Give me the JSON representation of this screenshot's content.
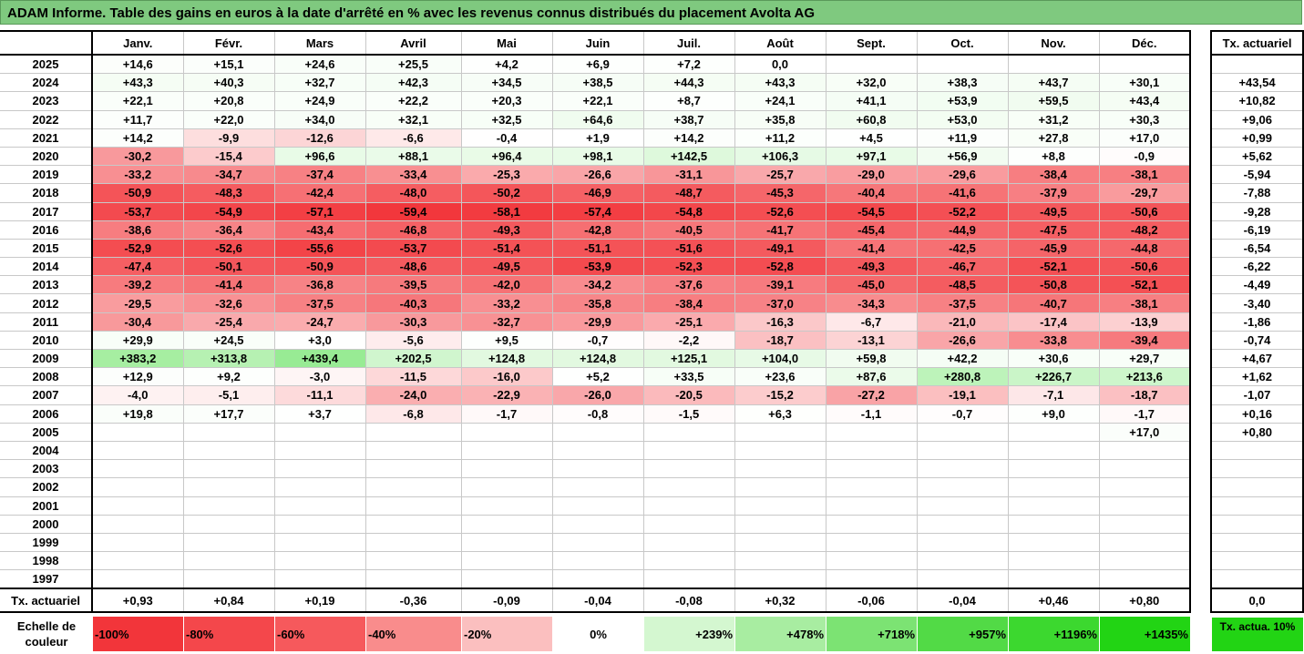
{
  "title": "ADAM Informe. Table des gains en euros à la date d'arrêté en % avec les revenus connus distribués du placement Avolta AG",
  "months": [
    "Janv.",
    "Févr.",
    "Mars",
    "Avril",
    "Mai",
    "Juin",
    "Juil.",
    "Août",
    "Sept.",
    "Oct.",
    "Nov.",
    "Déc."
  ],
  "side_header": "Tx. actuariel",
  "footer_label": "Tx. actuariel",
  "rows": [
    {
      "year": "2025",
      "values": [
        "+14,6",
        "+15,1",
        "+24,6",
        "+25,5",
        "+4,2",
        "+6,9",
        "+7,2",
        "0,0",
        "",
        "",
        "",
        ""
      ],
      "rate": ""
    },
    {
      "year": "2024",
      "values": [
        "+43,3",
        "+40,3",
        "+32,7",
        "+42,3",
        "+34,5",
        "+38,5",
        "+44,3",
        "+43,3",
        "+32,0",
        "+38,3",
        "+43,7",
        "+30,1"
      ],
      "rate": "+43,54"
    },
    {
      "year": "2023",
      "values": [
        "+22,1",
        "+20,8",
        "+24,9",
        "+22,2",
        "+20,3",
        "+22,1",
        "+8,7",
        "+24,1",
        "+41,1",
        "+53,9",
        "+59,5",
        "+43,4"
      ],
      "rate": "+10,82"
    },
    {
      "year": "2022",
      "values": [
        "+11,7",
        "+22,0",
        "+34,0",
        "+32,1",
        "+32,5",
        "+64,6",
        "+38,7",
        "+35,8",
        "+60,8",
        "+53,0",
        "+31,2",
        "+30,3"
      ],
      "rate": "+9,06"
    },
    {
      "year": "2021",
      "values": [
        "+14,2",
        "-9,9",
        "-12,6",
        "-6,6",
        "-0,4",
        "+1,9",
        "+14,2",
        "+11,2",
        "+4,5",
        "+11,9",
        "+27,8",
        "+17,0"
      ],
      "rate": "+0,99"
    },
    {
      "year": "2020",
      "values": [
        "-30,2",
        "-15,4",
        "+96,6",
        "+88,1",
        "+96,4",
        "+98,1",
        "+142,5",
        "+106,3",
        "+97,1",
        "+56,9",
        "+8,8",
        "-0,9"
      ],
      "rate": "+5,62"
    },
    {
      "year": "2019",
      "values": [
        "-33,2",
        "-34,7",
        "-37,4",
        "-33,4",
        "-25,3",
        "-26,6",
        "-31,1",
        "-25,7",
        "-29,0",
        "-29,6",
        "-38,4",
        "-38,1"
      ],
      "rate": "-5,94"
    },
    {
      "year": "2018",
      "values": [
        "-50,9",
        "-48,3",
        "-42,4",
        "-48,0",
        "-50,2",
        "-46,9",
        "-48,7",
        "-45,3",
        "-40,4",
        "-41,6",
        "-37,9",
        "-29,7"
      ],
      "rate": "-7,88"
    },
    {
      "year": "2017",
      "values": [
        "-53,7",
        "-54,9",
        "-57,1",
        "-59,4",
        "-58,1",
        "-57,4",
        "-54,8",
        "-52,6",
        "-54,5",
        "-52,2",
        "-49,5",
        "-50,6"
      ],
      "rate": "-9,28"
    },
    {
      "year": "2016",
      "values": [
        "-38,6",
        "-36,4",
        "-43,4",
        "-46,8",
        "-49,3",
        "-42,8",
        "-40,5",
        "-41,7",
        "-45,4",
        "-44,9",
        "-47,5",
        "-48,2"
      ],
      "rate": "-6,19"
    },
    {
      "year": "2015",
      "values": [
        "-52,9",
        "-52,6",
        "-55,6",
        "-53,7",
        "-51,4",
        "-51,1",
        "-51,6",
        "-49,1",
        "-41,4",
        "-42,5",
        "-45,9",
        "-44,8"
      ],
      "rate": "-6,54"
    },
    {
      "year": "2014",
      "values": [
        "-47,4",
        "-50,1",
        "-50,9",
        "-48,6",
        "-49,5",
        "-53,9",
        "-52,3",
        "-52,8",
        "-49,3",
        "-46,7",
        "-52,1",
        "-50,6"
      ],
      "rate": "-6,22"
    },
    {
      "year": "2013",
      "values": [
        "-39,2",
        "-41,4",
        "-36,8",
        "-39,5",
        "-42,0",
        "-34,2",
        "-37,6",
        "-39,1",
        "-45,0",
        "-48,5",
        "-50,8",
        "-52,1"
      ],
      "rate": "-4,49"
    },
    {
      "year": "2012",
      "values": [
        "-29,5",
        "-32,6",
        "-37,5",
        "-40,3",
        "-33,2",
        "-35,8",
        "-38,4",
        "-37,0",
        "-34,3",
        "-37,5",
        "-40,7",
        "-38,1"
      ],
      "rate": "-3,40"
    },
    {
      "year": "2011",
      "values": [
        "-30,4",
        "-25,4",
        "-24,7",
        "-30,3",
        "-32,7",
        "-29,9",
        "-25,1",
        "-16,3",
        "-6,7",
        "-21,0",
        "-17,4",
        "-13,9"
      ],
      "rate": "-1,86"
    },
    {
      "year": "2010",
      "values": [
        "+29,9",
        "+24,5",
        "+3,0",
        "-5,6",
        "+9,5",
        "-0,7",
        "-2,2",
        "-18,7",
        "-13,1",
        "-26,6",
        "-33,8",
        "-39,4"
      ],
      "rate": "-0,74"
    },
    {
      "year": "2009",
      "values": [
        "+383,2",
        "+313,8",
        "+439,4",
        "+202,5",
        "+124,8",
        "+124,8",
        "+125,1",
        "+104,0",
        "+59,8",
        "+42,2",
        "+30,6",
        "+29,7"
      ],
      "rate": "+4,67"
    },
    {
      "year": "2008",
      "values": [
        "+12,9",
        "+9,2",
        "-3,0",
        "-11,5",
        "-16,0",
        "+5,2",
        "+33,5",
        "+23,6",
        "+87,6",
        "+280,8",
        "+226,7",
        "+213,6"
      ],
      "rate": "+1,62"
    },
    {
      "year": "2007",
      "values": [
        "-4,0",
        "-5,1",
        "-11,1",
        "-24,0",
        "-22,9",
        "-26,0",
        "-20,5",
        "-15,2",
        "-27,2",
        "-19,1",
        "-7,1",
        "-18,7"
      ],
      "rate": "-1,07"
    },
    {
      "year": "2006",
      "values": [
        "+19,8",
        "+17,7",
        "+3,7",
        "-6,8",
        "-1,7",
        "-0,8",
        "-1,5",
        "+6,3",
        "-1,1",
        "-0,7",
        "+9,0",
        "-1,7"
      ],
      "rate": "+0,16"
    },
    {
      "year": "2005",
      "values": [
        "",
        "",
        "",
        "",
        "",
        "",
        "",
        "",
        "",
        "",
        "",
        "+17,0"
      ],
      "rate": "+0,80"
    },
    {
      "year": "2004",
      "values": [
        "",
        "",
        "",
        "",
        "",
        "",
        "",
        "",
        "",
        "",
        "",
        ""
      ],
      "rate": ""
    },
    {
      "year": "2003",
      "values": [
        "",
        "",
        "",
        "",
        "",
        "",
        "",
        "",
        "",
        "",
        "",
        ""
      ],
      "rate": ""
    },
    {
      "year": "2002",
      "values": [
        "",
        "",
        "",
        "",
        "",
        "",
        "",
        "",
        "",
        "",
        "",
        ""
      ],
      "rate": ""
    },
    {
      "year": "2001",
      "values": [
        "",
        "",
        "",
        "",
        "",
        "",
        "",
        "",
        "",
        "",
        "",
        ""
      ],
      "rate": ""
    },
    {
      "year": "2000",
      "values": [
        "",
        "",
        "",
        "",
        "",
        "",
        "",
        "",
        "",
        "",
        "",
        ""
      ],
      "rate": ""
    },
    {
      "year": "1999",
      "values": [
        "",
        "",
        "",
        "",
        "",
        "",
        "",
        "",
        "",
        "",
        "",
        ""
      ],
      "rate": ""
    },
    {
      "year": "1998",
      "values": [
        "",
        "",
        "",
        "",
        "",
        "",
        "",
        "",
        "",
        "",
        "",
        ""
      ],
      "rate": ""
    },
    {
      "year": "1997",
      "values": [
        "",
        "",
        "",
        "",
        "",
        "",
        "",
        "",
        "",
        "",
        "",
        ""
      ],
      "rate": ""
    }
  ],
  "footer_values": [
    "+0,93",
    "+0,84",
    "+0,19",
    "-0,36",
    "-0,09",
    "-0,04",
    "-0,08",
    "+0,32",
    "-0,06",
    "-0,04",
    "+0,46",
    "+0,80"
  ],
  "footer_side": "0,0",
  "scale_label": "Echelle de couleur",
  "scale": [
    {
      "label": "-100%",
      "color": "#f2353a",
      "kind": "neg"
    },
    {
      "label": "-80%",
      "color": "#f4474b",
      "kind": "neg"
    },
    {
      "label": "-60%",
      "color": "#f6595c",
      "kind": "neg"
    },
    {
      "label": "-40%",
      "color": "#f98c8c",
      "kind": "neg"
    },
    {
      "label": "-20%",
      "color": "#fbbfbf",
      "kind": "neg"
    },
    {
      "label": "0%",
      "color": "#ffffff",
      "kind": "zero"
    },
    {
      "label": "+239%",
      "color": "#d4f7d0",
      "kind": "pos"
    },
    {
      "label": "+478%",
      "color": "#a8eda1",
      "kind": "pos"
    },
    {
      "label": "+718%",
      "color": "#7ce373",
      "kind": "pos"
    },
    {
      "label": "+957%",
      "color": "#52da46",
      "kind": "pos"
    },
    {
      "label": "+1196%",
      "color": "#3cd82f",
      "kind": "pos"
    },
    {
      "label": "+1435%",
      "color": "#22d414",
      "kind": "pos"
    }
  ],
  "scale_side": {
    "label": "Tx. actua. 10%",
    "color": "#22d414"
  }
}
